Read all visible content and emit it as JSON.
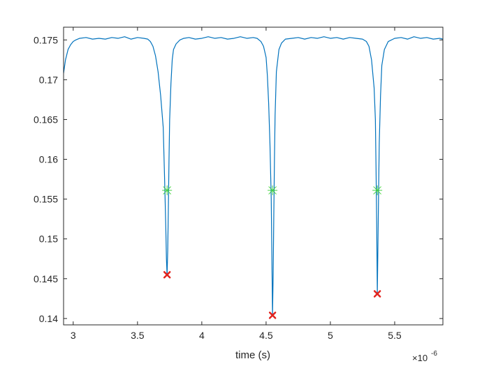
{
  "chart_data": {
    "type": "line",
    "title": "",
    "xlabel": "time (s)",
    "ylabel": "",
    "x_exponent_base": "×10",
    "x_exponent_power": "-6",
    "xlim": [
      2.925,
      5.875
    ],
    "ylim": [
      0.1392,
      0.1766
    ],
    "xticks": [
      3,
      3.5,
      4,
      4.5,
      5,
      5.5
    ],
    "xtick_labels": [
      "3",
      "3.5",
      "4",
      "4.5",
      "5",
      "5.5"
    ],
    "yticks": [
      0.14,
      0.145,
      0.15,
      0.155,
      0.16,
      0.165,
      0.17,
      0.175
    ],
    "ytick_labels": [
      "0.14",
      "0.145",
      "0.15",
      "0.155",
      "0.16",
      "0.165",
      "0.17",
      "0.175"
    ],
    "grid": false,
    "colors": {
      "signal": "#0072BD",
      "minima": "#E2241E",
      "half_level": "#44D244",
      "axes": "#262626"
    },
    "series": [
      {
        "marker": "line",
        "x": [
          2.925,
          2.94,
          2.96,
          2.98,
          3.0,
          3.02,
          3.05,
          3.1,
          3.15,
          3.2,
          3.25,
          3.3,
          3.35,
          3.4,
          3.45,
          3.5,
          3.55,
          3.58,
          3.6,
          3.62,
          3.64,
          3.66,
          3.68,
          3.7,
          3.71,
          3.72,
          3.725,
          3.73,
          3.735,
          3.74,
          3.745,
          3.75,
          3.76,
          3.77,
          3.78,
          3.8,
          3.83,
          3.86,
          3.9,
          3.95,
          4.0,
          4.05,
          4.1,
          4.15,
          4.2,
          4.25,
          4.3,
          4.35,
          4.4,
          4.43,
          4.46,
          4.48,
          4.5,
          4.51,
          4.52,
          4.53,
          4.54,
          4.545,
          4.55,
          4.555,
          4.56,
          4.565,
          4.57,
          4.58,
          4.6,
          4.62,
          4.65,
          4.7,
          4.75,
          4.8,
          4.85,
          4.9,
          4.95,
          5.0,
          5.05,
          5.1,
          5.15,
          5.2,
          5.25,
          5.28,
          5.3,
          5.32,
          5.34,
          5.35,
          5.355,
          5.36,
          5.365,
          5.37,
          5.375,
          5.38,
          5.39,
          5.4,
          5.42,
          5.45,
          5.5,
          5.55,
          5.6,
          5.65,
          5.7,
          5.75,
          5.8,
          5.85,
          5.875
        ],
        "y": [
          0.1708,
          0.1725,
          0.1738,
          0.1744,
          0.1748,
          0.175,
          0.1752,
          0.1753,
          0.1751,
          0.1752,
          0.1751,
          0.1753,
          0.1752,
          0.1754,
          0.1751,
          0.1753,
          0.1752,
          0.1751,
          0.1748,
          0.1742,
          0.173,
          0.171,
          0.168,
          0.164,
          0.158,
          0.1515,
          0.1475,
          0.1455,
          0.1485,
          0.154,
          0.16,
          0.165,
          0.1695,
          0.1725,
          0.1738,
          0.1745,
          0.175,
          0.1752,
          0.1753,
          0.1751,
          0.1752,
          0.1754,
          0.1752,
          0.1753,
          0.1751,
          0.1752,
          0.1754,
          0.1752,
          0.1753,
          0.1752,
          0.1748,
          0.1742,
          0.1728,
          0.1705,
          0.167,
          0.162,
          0.155,
          0.1478,
          0.1404,
          0.1455,
          0.153,
          0.16,
          0.1655,
          0.171,
          0.1738,
          0.1746,
          0.1751,
          0.1752,
          0.1753,
          0.1751,
          0.1753,
          0.1752,
          0.1754,
          0.1752,
          0.1753,
          0.1751,
          0.1753,
          0.1752,
          0.1751,
          0.1748,
          0.1742,
          0.1725,
          0.169,
          0.165,
          0.159,
          0.152,
          0.1431,
          0.1495,
          0.156,
          0.162,
          0.168,
          0.1718,
          0.1738,
          0.1748,
          0.1752,
          0.1753,
          0.1751,
          0.1754,
          0.1752,
          0.1753,
          0.1751,
          0.1752,
          0.1751
        ]
      },
      {
        "marker": "x",
        "x": [
          3.73,
          4.55,
          5.365
        ],
        "y": [
          0.1455,
          0.1404,
          0.1431
        ]
      },
      {
        "marker": "x+",
        "x": [
          3.73,
          4.55,
          5.365
        ],
        "y": [
          0.1561,
          0.1561,
          0.1561
        ]
      }
    ]
  }
}
